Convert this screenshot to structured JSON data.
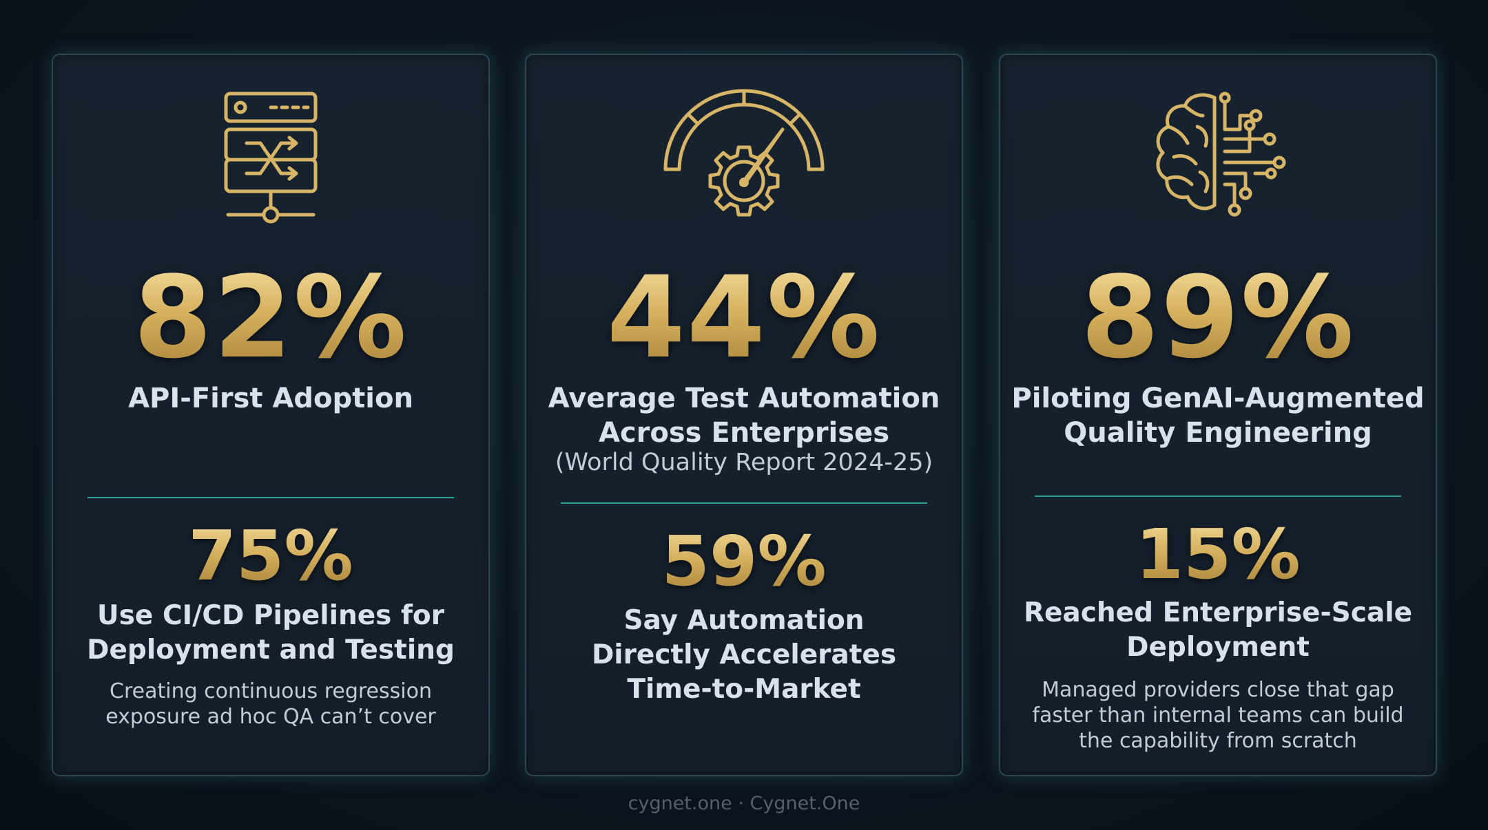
{
  "colors": {
    "background": "#0b141d",
    "card": "#15212d",
    "card_border": "#2c4550",
    "gold": "#d8b566",
    "divider": "#2fa597",
    "text": "#d9e2ec",
    "footer_text": "#55606b"
  },
  "cards": [
    {
      "icon": "api-server-shuffle-icon",
      "stat": "82%",
      "label_lines": [
        "API-First Adoption"
      ],
      "sub_label": "",
      "stat2": "75%",
      "label2_lines": [
        "Use CI/CD Pipelines for",
        "Deployment and Testing"
      ],
      "note_lines": [
        "Creating continuous regression",
        "exposure ad hoc QA can’t cover"
      ]
    },
    {
      "icon": "gauge-gear-icon",
      "stat": "44%",
      "label_lines": [
        "Average Test Automation",
        "Across Enterprises"
      ],
      "sub_label": "(World Quality Report 2024-25)",
      "stat2": "59%",
      "label2_lines": [
        "Say Automation",
        "Directly Accelerates",
        "Time-to-Market"
      ],
      "note_lines": []
    },
    {
      "icon": "ai-brain-circuit-icon",
      "stat": "89%",
      "label_lines": [
        "Piloting GenAI-Augmented",
        "Quality Engineering"
      ],
      "sub_label": "",
      "stat2": "15%",
      "label2_lines": [
        "Reached Enterprise-Scale",
        "Deployment"
      ],
      "note_lines": [
        "Managed providers close that gap",
        "faster than internal teams can build",
        "the capability from scratch"
      ]
    }
  ],
  "footer": "cygnet.one · Cygnet.One"
}
